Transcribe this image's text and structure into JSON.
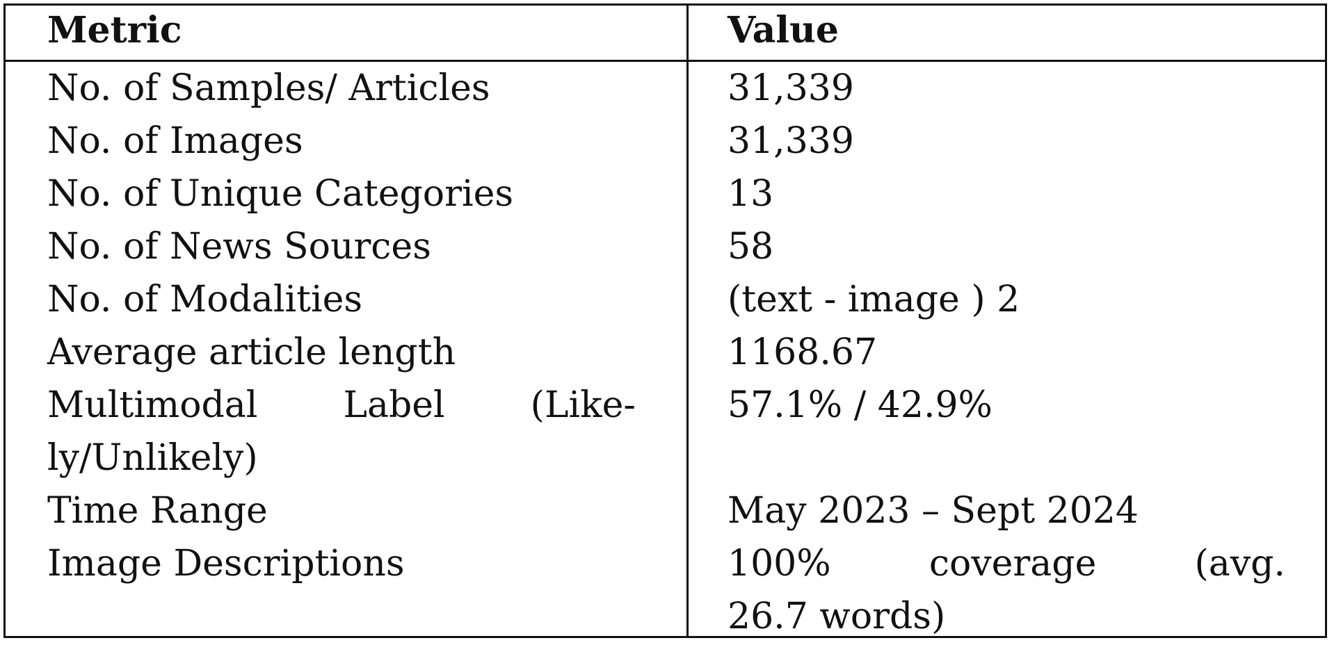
{
  "table": {
    "headers": {
      "metric": "Metric",
      "value": "Value"
    },
    "rows": [
      {
        "metric": "No. of Samples/ Articles",
        "value": "31,339"
      },
      {
        "metric": "No. of Images",
        "value": "31,339"
      },
      {
        "metric": "No. of Unique Categories",
        "value": "13"
      },
      {
        "metric": "No. of News Sources",
        "value": "58"
      },
      {
        "metric": "No. of Modalities",
        "value": "(text - image ) 2"
      },
      {
        "metric": "Average article length",
        "value": "1168.67"
      },
      {
        "metric_lines": [
          [
            "Multimodal",
            "Label",
            "(Like-"
          ],
          "ly/Unlikely)"
        ],
        "value": "57.1% / 42.9%"
      },
      {
        "metric": "Time Range",
        "value": "May 2023 – Sept 2024"
      },
      {
        "metric": "Image Descriptions",
        "value_lines": [
          [
            "100%",
            "coverage",
            "(avg."
          ],
          "26.7 words)"
        ]
      }
    ]
  }
}
